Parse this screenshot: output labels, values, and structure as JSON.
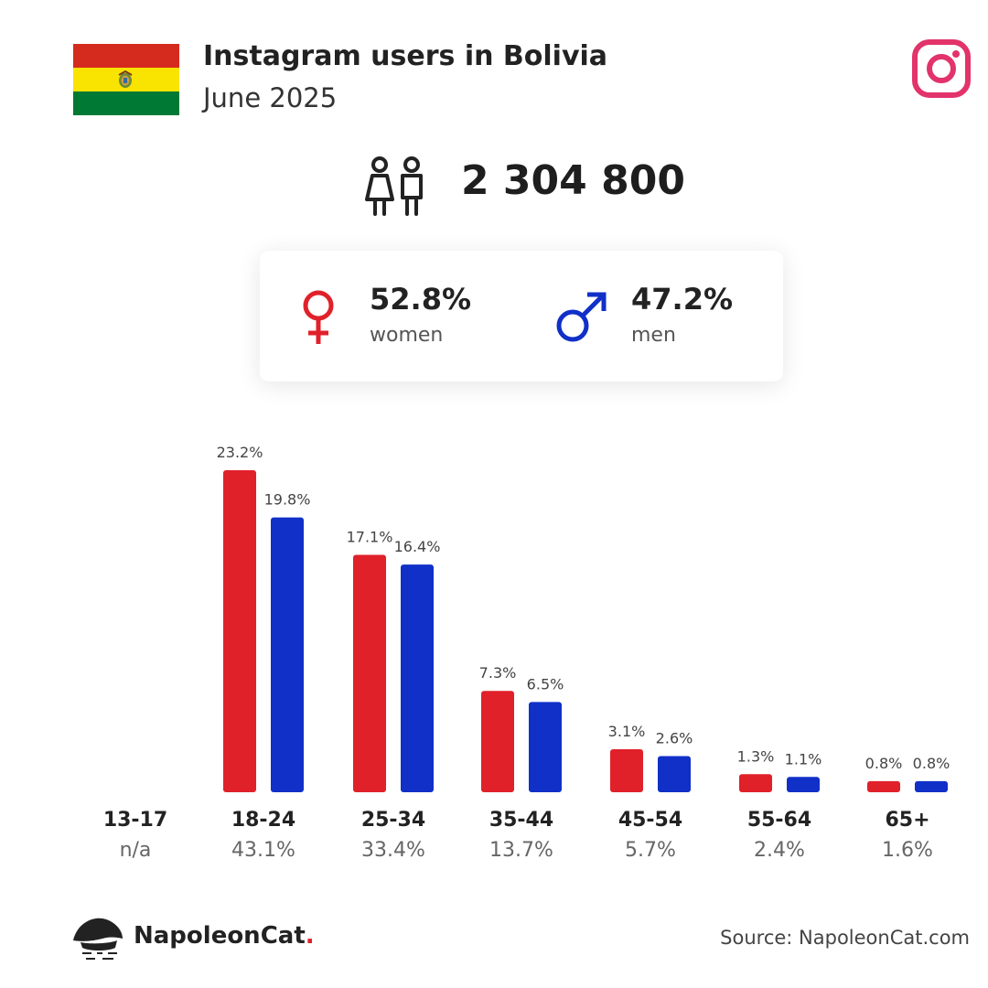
{
  "header": {
    "title": "Instagram users in Bolivia",
    "subtitle": "June 2025"
  },
  "flag_colors": [
    "#d52b1e",
    "#f9e300",
    "#007934"
  ],
  "icons": {
    "platform": "instagram-icon",
    "users": "people-icon",
    "women": "female-symbol-icon",
    "men": "male-symbol-icon"
  },
  "total_users": "2 304 800",
  "gender": {
    "women": {
      "pct": "52.8%",
      "label": "women",
      "color": "#e0212a"
    },
    "men": {
      "pct": "47.2%",
      "label": "men",
      "color": "#1030c8"
    }
  },
  "chart_data": {
    "type": "bar",
    "categories": [
      "13-17",
      "18-24",
      "25-34",
      "35-44",
      "45-54",
      "55-64",
      "65+"
    ],
    "category_totals": [
      "n/a",
      "43.1%",
      "33.4%",
      "13.7%",
      "5.7%",
      "2.4%",
      "1.6%"
    ],
    "series": [
      {
        "name": "women",
        "color": "#e0212a",
        "values": [
          null,
          23.2,
          17.1,
          7.3,
          3.1,
          1.3,
          0.8
        ]
      },
      {
        "name": "men",
        "color": "#1030c8",
        "values": [
          null,
          19.8,
          16.4,
          6.5,
          2.6,
          1.1,
          0.8
        ]
      }
    ],
    "value_suffix": "%",
    "ylim": [
      0,
      23.2
    ],
    "grid": false,
    "title": "",
    "xlabel": "",
    "ylabel": ""
  },
  "footer": {
    "brand_name": "NapoleonCat",
    "brand_dot": ".",
    "source": "Source: NapoleonCat.com"
  }
}
